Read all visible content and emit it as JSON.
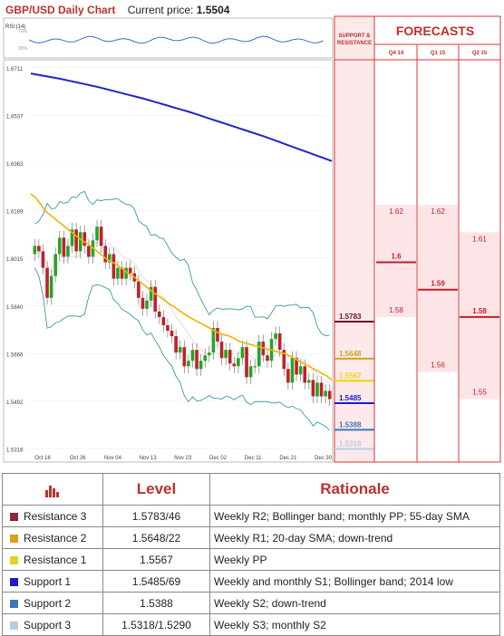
{
  "header": {
    "title": "GBP/USD Daily Chart",
    "price_label": "Current price:",
    "price": "1.5504"
  },
  "rsi": {
    "label": "RSI (14)",
    "ticks": [
      "70%",
      "30%"
    ]
  },
  "forecasts": {
    "title": "FORECASTS",
    "sr_title_1": "SUPPORT &",
    "sr_title_2": "RESISTANCE",
    "columns": [
      {
        "name": "Q4 14",
        "values": [
          "1.62",
          "1.6",
          "1.58"
        ]
      },
      {
        "name": "Q1 15",
        "values": [
          "1.62",
          "1.59",
          "1.56"
        ]
      },
      {
        "name": "Q2 15",
        "values": [
          "1.61",
          "1.58",
          "1.55"
        ]
      }
    ]
  },
  "chart_data": {
    "type": "candlestick",
    "title": "GBP/USD Daily Chart",
    "y_ticks": [
      "1.6711",
      "1.6537",
      "1.6363",
      "1.6189",
      "1.6015",
      "1.5840",
      "1.5666",
      "1.5492",
      "1.5318"
    ],
    "ylim": [
      1.527,
      1.674
    ],
    "x_ticks": [
      "Oct 16",
      "Oct 26",
      "Nov 04",
      "Nov 13",
      "Nov 23",
      "Dec 02",
      "Dec 11",
      "Dec 21",
      "Dec 30"
    ],
    "series": [
      {
        "name": "Close",
        "values": [
          1.606,
          1.604,
          1.598,
          1.587,
          1.595,
          1.603,
          1.609,
          1.602,
          1.606,
          1.612,
          1.604,
          1.611,
          1.606,
          1.602,
          1.608,
          1.613,
          1.606,
          1.6,
          1.603,
          1.594,
          1.598,
          1.594,
          1.598,
          1.596,
          1.593,
          1.587,
          1.583,
          1.586,
          1.591,
          1.582,
          1.58,
          1.577,
          1.575,
          1.573,
          1.567,
          1.569,
          1.562,
          1.564,
          1.568,
          1.561,
          1.564,
          1.566,
          1.567,
          1.576,
          1.571,
          1.565,
          1.568,
          1.563,
          1.562,
          1.565,
          1.569,
          1.558,
          1.562,
          1.562,
          1.571,
          1.566,
          1.564,
          1.572,
          1.574,
          1.568,
          1.561,
          1.556,
          1.565,
          1.559,
          1.562,
          1.556,
          1.557,
          1.551,
          1.556,
          1.551,
          1.553,
          1.55
        ]
      },
      {
        "name": "55-day SMA",
        "values": [
          1.669,
          1.6685,
          1.668,
          1.6675,
          1.667,
          1.6664,
          1.6658,
          1.6652,
          1.6646,
          1.664,
          1.6633,
          1.6626,
          1.6619,
          1.6612,
          1.6605,
          1.6598,
          1.659,
          1.6582,
          1.6574,
          1.6566,
          1.6558,
          1.655,
          1.6541,
          1.6532,
          1.6523,
          1.6514,
          1.6505,
          1.6496,
          1.6487,
          1.6478,
          1.6469,
          1.646,
          1.645,
          1.644,
          1.643,
          1.642,
          1.641,
          1.64,
          1.639,
          1.638,
          1.637
        ]
      },
      {
        "name": "20-day SMA",
        "values": [
          1.625,
          1.6235,
          1.621,
          1.6185,
          1.617,
          1.6155,
          1.614,
          1.6125,
          1.611,
          1.6095,
          1.608,
          1.607,
          1.6055,
          1.604,
          1.6025,
          1.601,
          1.6,
          1.599,
          1.5975,
          1.596,
          1.595,
          1.5935,
          1.592,
          1.5905,
          1.589,
          1.5878,
          1.5865,
          1.585,
          1.5838,
          1.5825,
          1.5812,
          1.58,
          1.579,
          1.578,
          1.577,
          1.576,
          1.575,
          1.574,
          1.5735,
          1.573,
          1.572,
          1.571,
          1.5705,
          1.57,
          1.5695,
          1.569,
          1.5685,
          1.568,
          1.5675,
          1.567,
          1.5665,
          1.5655,
          1.5645,
          1.5635,
          1.5625,
          1.5615,
          1.5605,
          1.5595,
          1.5585,
          1.557
        ]
      }
    ],
    "levels": [
      {
        "name": "Resistance 3",
        "value": "1.5783",
        "color": "#6b1424"
      },
      {
        "name": "Resistance 2",
        "value": "1.5648",
        "color": "#d8a21c"
      },
      {
        "name": "Resistance 1",
        "value": "1.5567",
        "color": "#f0d400"
      },
      {
        "name": "Support 1",
        "value": "1.5485",
        "color": "#1a1acb"
      },
      {
        "name": "Support 2",
        "value": "1.5388",
        "color": "#3a78b8"
      },
      {
        "name": "Support 3",
        "value": "1.5318",
        "color": "#b8cde4"
      }
    ]
  },
  "table": {
    "headers": [
      "Level",
      "Rationale"
    ],
    "rows": [
      {
        "name": "Resistance 3",
        "color": "#8b2a3a",
        "level": "1.5783/46",
        "rationale": "Weekly R2; Bollinger band; monthly PP; 55-day SMA"
      },
      {
        "name": "Resistance 2",
        "color": "#d8a21c",
        "level": "1.5648/22",
        "rationale": "Weekly R1; 20-day SMA; down-trend"
      },
      {
        "name": "Resistance 1",
        "color": "#e6d21a",
        "level": "1.5567",
        "rationale": "Weekly PP"
      },
      {
        "name": "Support 1",
        "color": "#1a1acb",
        "level": "1.5485/69",
        "rationale": "Weekly and monthly S1; Bollinger band; 2014 low"
      },
      {
        "name": "Support 2",
        "color": "#3a78b8",
        "level": "1.5388",
        "rationale": "Weekly S2; down-trend"
      },
      {
        "name": "Support 3",
        "color": "#b8cde4",
        "level": "1.5318/1.5290",
        "rationale": "Weekly S3; monthly S2"
      }
    ]
  }
}
